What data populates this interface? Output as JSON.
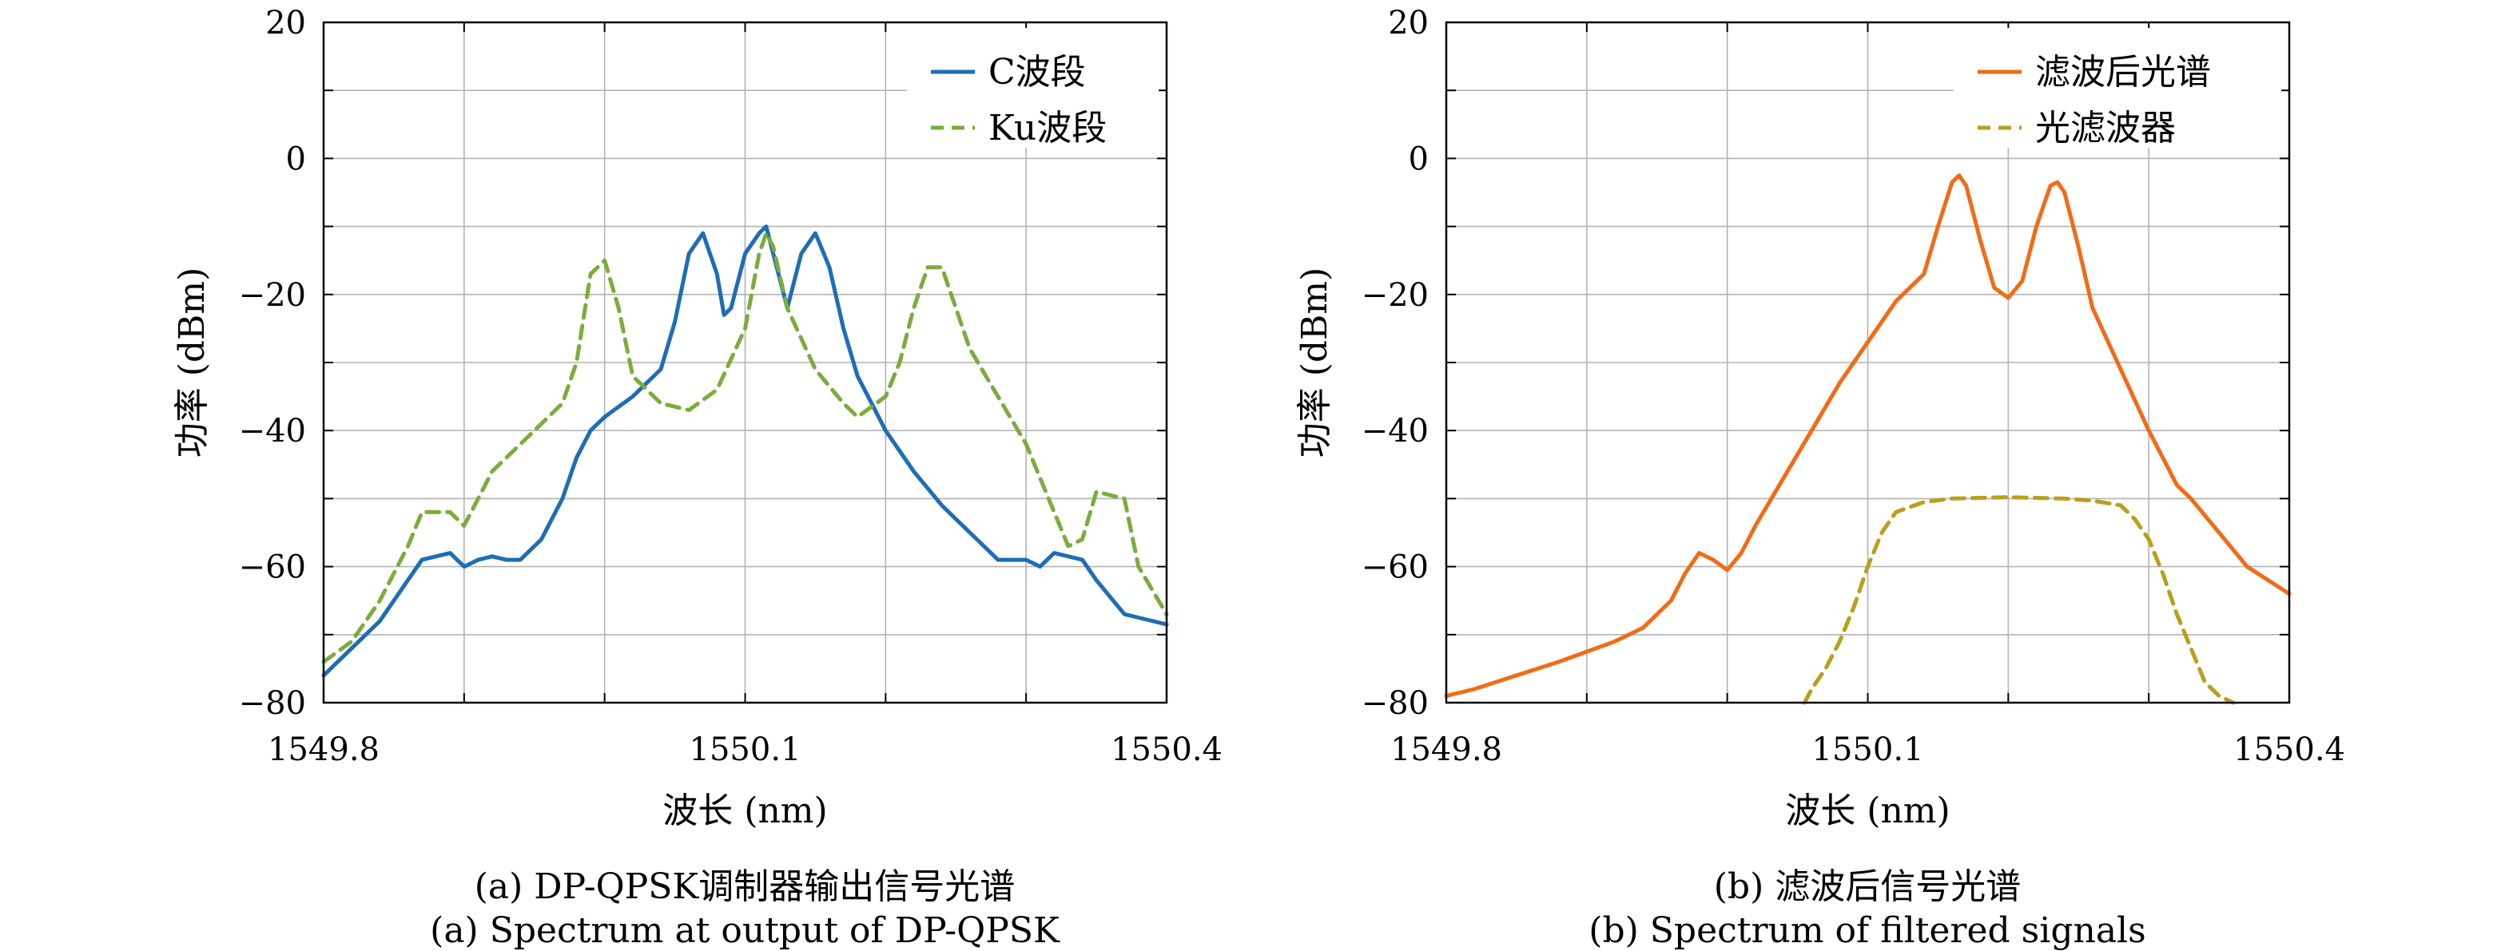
{
  "chart_data": [
    {
      "type": "line",
      "xlabel": "波长 (nm)",
      "ylabel": "功率 (dBm)",
      "xlim": [
        1549.8,
        1550.4
      ],
      "ylim": [
        -80,
        20
      ],
      "xticks": [
        "1549.8",
        "1550.1",
        "1550.4"
      ],
      "yticks": [
        "20",
        "0",
        "−20",
        "−40",
        "−60",
        "−80"
      ],
      "grid": true,
      "legend_position": "top-right",
      "caption_cn": "(a) DP-QPSK调制器输出信号光谱",
      "caption_en": "(a) Spectrum at output of DP-QPSK",
      "series": [
        {
          "name": "C波段",
          "color": "#1f6db5",
          "style": "solid",
          "x": [
            1549.8,
            1549.82,
            1549.84,
            1549.86,
            1549.87,
            1549.89,
            1549.9,
            1549.91,
            1549.92,
            1549.93,
            1549.94,
            1549.955,
            1549.97,
            1549.98,
            1549.99,
            1550.0,
            1550.02,
            1550.04,
            1550.05,
            1550.06,
            1550.07,
            1550.08,
            1550.085,
            1550.09,
            1550.1,
            1550.11,
            1550.115,
            1550.12,
            1550.13,
            1550.14,
            1550.15,
            1550.16,
            1550.17,
            1550.18,
            1550.19,
            1550.2,
            1550.22,
            1550.24,
            1550.25,
            1550.27,
            1550.28,
            1550.3,
            1550.31,
            1550.32,
            1550.34,
            1550.35,
            1550.37,
            1550.38,
            1550.4
          ],
          "y": [
            -76,
            -72,
            -68,
            -62,
            -59,
            -58,
            -60,
            -59,
            -58.5,
            -59,
            -59,
            -56,
            -50,
            -44,
            -40,
            -38,
            -35,
            -31,
            -24,
            -14,
            -11,
            -17,
            -23,
            -22,
            -14,
            -11,
            -10,
            -14,
            -22,
            -14,
            -11,
            -16,
            -25,
            -32,
            -36,
            -40,
            -46,
            -51,
            -53,
            -57,
            -59,
            -59,
            -60,
            -58,
            -59,
            -62,
            -67,
            -67.5,
            -68.5
          ]
        },
        {
          "name": "Ku波段",
          "color": "#7aad3c",
          "style": "dashed",
          "x": [
            1549.8,
            1549.82,
            1549.84,
            1549.86,
            1549.87,
            1549.89,
            1549.9,
            1549.92,
            1549.95,
            1549.97,
            1549.98,
            1549.99,
            1550.0,
            1550.01,
            1550.02,
            1550.04,
            1550.06,
            1550.08,
            1550.1,
            1550.11,
            1550.115,
            1550.12,
            1550.13,
            1550.15,
            1550.17,
            1550.18,
            1550.2,
            1550.21,
            1550.22,
            1550.23,
            1550.24,
            1550.26,
            1550.28,
            1550.3,
            1550.31,
            1550.32,
            1550.33,
            1550.34,
            1550.35,
            1550.37,
            1550.38,
            1550.4
          ],
          "y": [
            -74,
            -71,
            -65,
            -57,
            -52,
            -52,
            -54,
            -46,
            -40,
            -36,
            -30,
            -17,
            -15,
            -22,
            -32,
            -36,
            -37,
            -34,
            -25,
            -14,
            -11,
            -13,
            -22,
            -31,
            -36,
            -38,
            -35,
            -30,
            -22,
            -16,
            -16,
            -28,
            -35,
            -42,
            -47,
            -52,
            -57,
            -56,
            -49,
            -50,
            -60,
            -67
          ]
        }
      ]
    },
    {
      "type": "line",
      "xlabel": "波长 (nm)",
      "ylabel": "功率 (dBm)",
      "xlim": [
        1549.8,
        1550.4
      ],
      "ylim": [
        -80,
        20
      ],
      "xticks": [
        "1549.8",
        "1550.1",
        "1550.4"
      ],
      "yticks": [
        "20",
        "0",
        "−20",
        "−40",
        "−60",
        "−80"
      ],
      "grid": true,
      "legend_position": "top-right",
      "caption_cn": "(b) 滤波后信号光谱",
      "caption_en": "(b) Spectrum of filtered signals",
      "series": [
        {
          "name": "滤波后光谱",
          "color": "#f26b16",
          "style": "solid",
          "x": [
            1549.8,
            1549.82,
            1549.85,
            1549.88,
            1549.9,
            1549.92,
            1549.94,
            1549.96,
            1549.97,
            1549.98,
            1549.99,
            1550.0,
            1550.01,
            1550.02,
            1550.04,
            1550.06,
            1550.08,
            1550.1,
            1550.12,
            1550.14,
            1550.15,
            1550.16,
            1550.165,
            1550.17,
            1550.18,
            1550.19,
            1550.2,
            1550.21,
            1550.22,
            1550.23,
            1550.235,
            1550.24,
            1550.25,
            1550.26,
            1550.28,
            1550.3,
            1550.32,
            1550.33,
            1550.35,
            1550.37,
            1550.4
          ],
          "y": [
            -79,
            -78,
            -76,
            -74,
            -72.5,
            -71,
            -69,
            -65,
            -61,
            -58,
            -59,
            -60.5,
            -58,
            -54,
            -47,
            -40,
            -33,
            -27,
            -21,
            -17,
            -10,
            -3.5,
            -2.5,
            -4,
            -12,
            -19,
            -20.5,
            -18,
            -10,
            -4,
            -3.5,
            -5,
            -13,
            -22,
            -31,
            -40,
            -48,
            -50,
            -55,
            -60,
            -64
          ]
        },
        {
          "name": "光滤波器",
          "color": "#b8a01c",
          "style": "dashed",
          "x": [
            1550.055,
            1550.06,
            1550.07,
            1550.08,
            1550.09,
            1550.1,
            1550.11,
            1550.12,
            1550.14,
            1550.16,
            1550.2,
            1550.24,
            1550.26,
            1550.28,
            1550.29,
            1550.3,
            1550.31,
            1550.32,
            1550.33,
            1550.34,
            1550.35,
            1550.36
          ],
          "y": [
            -80,
            -78,
            -75,
            -71,
            -66,
            -60,
            -55,
            -52,
            -50.5,
            -50,
            -49.8,
            -50,
            -50.3,
            -51,
            -53,
            -56,
            -61,
            -67,
            -72,
            -77,
            -79,
            -80
          ]
        }
      ]
    }
  ]
}
